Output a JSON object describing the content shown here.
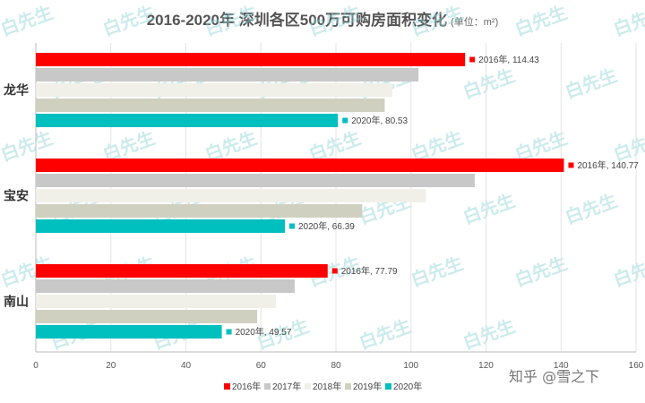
{
  "title": "2016-2020年 深圳各区500万可购房面积变化",
  "unit": "(单位：m²)",
  "watermark": {
    "text": "白先生"
  },
  "platform_mark": "知乎 @雪之下",
  "colors": {
    "2016年": "#ff0000",
    "2017年": "#c8c8c8",
    "2018年": "#f0f0e8",
    "2019年": "#d0d0c0",
    "2020年": "#00bfbf",
    "grid": "#e4e4e4",
    "axis": "#bbbbbb"
  },
  "chart_data": {
    "type": "bar",
    "orientation": "horizontal",
    "categories": [
      "龙华",
      "宝安",
      "南山"
    ],
    "series": [
      {
        "name": "2016年",
        "values": [
          114.43,
          140.77,
          77.79
        ]
      },
      {
        "name": "2017年",
        "values": [
          102,
          117,
          69
        ]
      },
      {
        "name": "2018年",
        "values": [
          95,
          104,
          64
        ]
      },
      {
        "name": "2019年",
        "values": [
          93,
          87,
          59
        ]
      },
      {
        "name": "2020年",
        "values": [
          80.53,
          66.39,
          49.57
        ]
      }
    ],
    "data_labels": [
      {
        "category": "龙华",
        "series": "2016年",
        "text": "2016年, 114.43"
      },
      {
        "category": "龙华",
        "series": "2020年",
        "text": "2020年, 80.53"
      },
      {
        "category": "宝安",
        "series": "2016年",
        "text": "2016年, 140.77"
      },
      {
        "category": "宝安",
        "series": "2020年",
        "text": "2020年, 66.39"
      },
      {
        "category": "南山",
        "series": "2016年",
        "text": "2016年, 77.79"
      },
      {
        "category": "南山",
        "series": "2020年",
        "text": "2020年, 49.57"
      }
    ],
    "xlim": [
      0,
      160
    ],
    "xticks": [
      "0",
      "20",
      "40",
      "60",
      "80",
      "100",
      "120",
      "140",
      "160"
    ],
    "grid": true,
    "legend_position": "bottom"
  }
}
